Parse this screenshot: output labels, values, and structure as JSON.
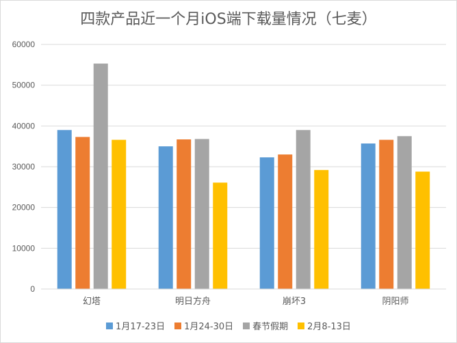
{
  "chart_data": {
    "type": "bar",
    "title": "四款产品近一个月iOS端下载量情况（七麦）",
    "categories": [
      "幻塔",
      "明日方舟",
      "崩坏3",
      "阴阳师"
    ],
    "series": [
      {
        "name": "1月17-23日",
        "color": "#5b9bd5",
        "values": [
          39000,
          35000,
          32300,
          35700
        ]
      },
      {
        "name": "1月24-30日",
        "color": "#ed7d31",
        "values": [
          37300,
          36700,
          33000,
          36600
        ]
      },
      {
        "name": "春节假期",
        "color": "#a5a5a5",
        "values": [
          55300,
          36800,
          39000,
          37500
        ]
      },
      {
        "name": "2月8-13日",
        "color": "#ffc000",
        "values": [
          36600,
          26100,
          29200,
          28800
        ]
      }
    ],
    "yticks": [
      "0",
      "10000",
      "20000",
      "30000",
      "40000",
      "50000",
      "60000"
    ],
    "ylim": [
      0,
      60000
    ],
    "grid": true,
    "legend_position": "bottom"
  }
}
